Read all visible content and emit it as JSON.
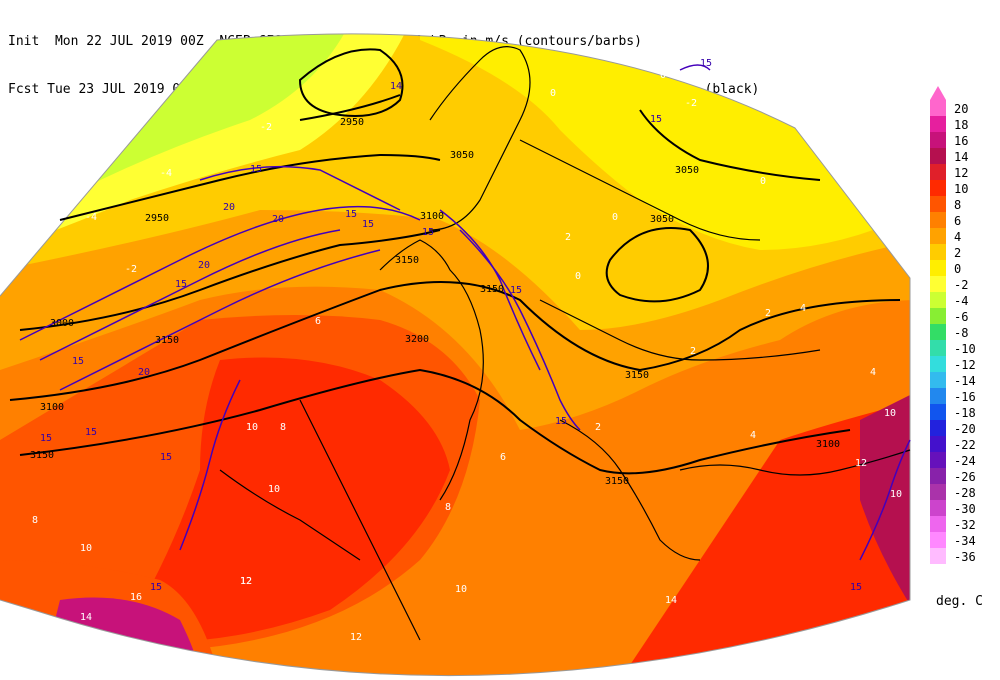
{
  "header": {
    "line1": "Init  Mon 22 JUL 2019 00Z  NCEP GFS wind speed at 700 hPa in m/s (contours/barbs)",
    "line2": "Fcst Tue 23 JUL 2019 06Z  temperature (shaded/dotted) and geopotential height at 700 hPa (black)"
  },
  "legend": {
    "units": "deg. C",
    "levels": [
      {
        "label": "20",
        "color": "#ff66cc"
      },
      {
        "label": "18",
        "color": "#e61f9e"
      },
      {
        "label": "16",
        "color": "#c7127a"
      },
      {
        "label": "14",
        "color": "#b5104f"
      },
      {
        "label": "12",
        "color": "#e0202a"
      },
      {
        "label": "10",
        "color": "#ff2a00"
      },
      {
        "label": "8",
        "color": "#ff5500"
      },
      {
        "label": "6",
        "color": "#ff8000"
      },
      {
        "label": "4",
        "color": "#ffa200"
      },
      {
        "label": "2",
        "color": "#ffcc00"
      },
      {
        "label": "0",
        "color": "#ffee00"
      },
      {
        "label": "-2",
        "color": "#ffff33"
      },
      {
        "label": "-4",
        "color": "#ccff33"
      },
      {
        "label": "-6",
        "color": "#88ee33"
      },
      {
        "label": "-8",
        "color": "#33dd66"
      },
      {
        "label": "-10",
        "color": "#33ddaa"
      },
      {
        "label": "-12",
        "color": "#33dddd"
      },
      {
        "label": "-14",
        "color": "#33bbee"
      },
      {
        "label": "-16",
        "color": "#2288ee"
      },
      {
        "label": "-18",
        "color": "#1155ee"
      },
      {
        "label": "-20",
        "color": "#2222dd"
      },
      {
        "label": "-22",
        "color": "#4411cc"
      },
      {
        "label": "-24",
        "color": "#6611bb"
      },
      {
        "label": "-26",
        "color": "#8822aa"
      },
      {
        "label": "-28",
        "color": "#aa33aa"
      },
      {
        "label": "-30",
        "color": "#cc44cc"
      },
      {
        "label": "-32",
        "color": "#ee66ee"
      },
      {
        "label": "-34",
        "color": "#ff88ff"
      },
      {
        "label": "-36",
        "color": "#ffbbff"
      }
    ]
  },
  "height_labels": [
    "2950",
    "2950",
    "3000",
    "3050",
    "3050",
    "3050",
    "3100",
    "3100",
    "3100",
    "3150",
    "3150",
    "3150",
    "3150",
    "3150",
    "3200",
    "3150"
  ],
  "wind_labels": [
    "15",
    "15",
    "15",
    "20",
    "20",
    "20",
    "15",
    "15",
    "15",
    "14",
    "15",
    "15",
    "20",
    "15",
    "15",
    "15",
    "15",
    "15",
    "15",
    "15"
  ],
  "temp_labels": [
    "-4",
    "-2",
    "-2",
    "-4",
    "0",
    "0",
    "0",
    "-2",
    "0",
    "2",
    "4",
    "6",
    "8",
    "10",
    "12",
    "10",
    "8",
    "10",
    "12",
    "16",
    "14",
    "10",
    "2",
    "4",
    "6",
    "8",
    "10",
    "12",
    "14",
    "2",
    "4",
    "2",
    "0",
    "-2",
    "10",
    "12"
  ]
}
